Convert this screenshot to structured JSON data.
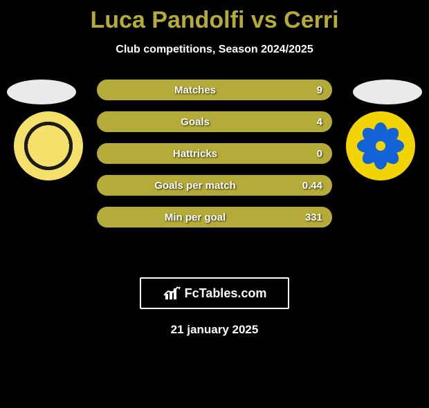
{
  "title_color": "#b4ab38",
  "player_left": "Luca Pandolfi",
  "vs_word": "vs",
  "player_right": "Cerri",
  "subtitle": "Club competitions, Season 2024/2025",
  "oval_color": "#eaeaea",
  "bar_track_color": "#444444",
  "bar_fill_color": "#b4ab38",
  "stats": [
    {
      "label": "Matches",
      "value": "9",
      "fill": 1.0
    },
    {
      "label": "Goals",
      "value": "4",
      "fill": 1.0
    },
    {
      "label": "Hattricks",
      "value": "0",
      "fill": 1.0
    },
    {
      "label": "Goals per match",
      "value": "0.44",
      "fill": 1.0
    },
    {
      "label": "Min per goal",
      "value": "331",
      "fill": 1.0
    }
  ],
  "brand": "FcTables.com",
  "date": "21 january 2025",
  "background_color": "#000000",
  "text_color": "#ffffff",
  "club_left_colors": {
    "outer": "#f4e06a",
    "ring": "#1b1b1b"
  },
  "club_right_colors": {
    "bg": "#f2d400",
    "petal": "#1463d6"
  }
}
